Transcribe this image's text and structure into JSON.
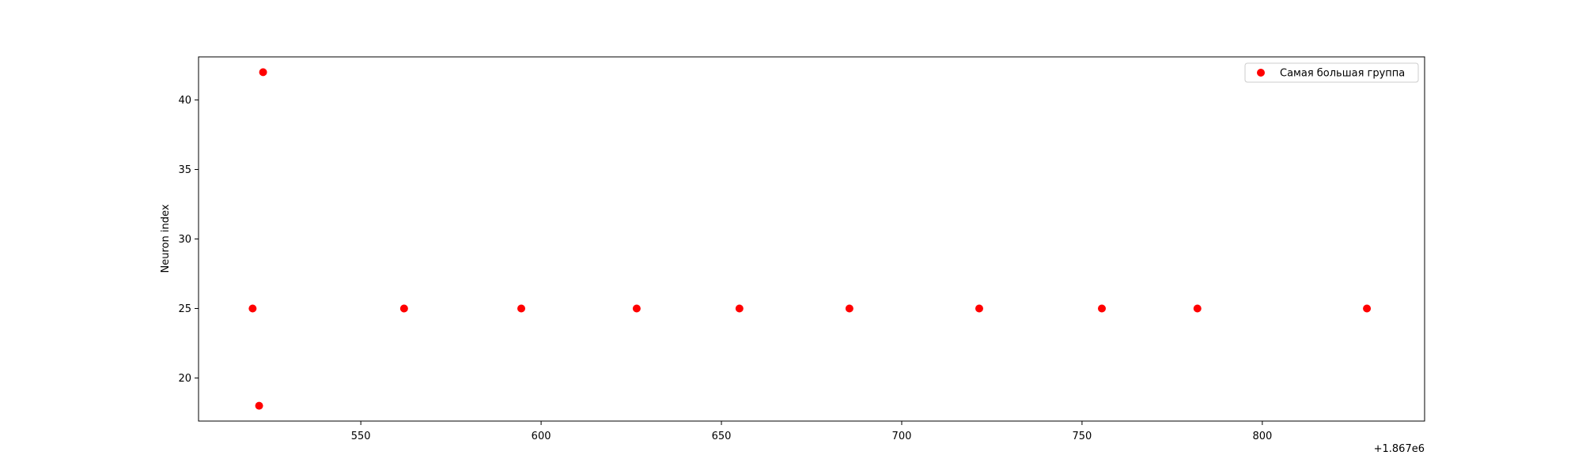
{
  "chart_data": {
    "type": "scatter",
    "xlabel": "",
    "ylabel": "Neuron index",
    "x_offset_label": "+1.867e6",
    "xlim": [
      505,
      845
    ],
    "ylim": [
      16.9,
      43.1
    ],
    "x_ticks": [
      550,
      600,
      650,
      700,
      750,
      800
    ],
    "y_ticks": [
      20,
      25,
      30,
      35,
      40
    ],
    "grid": false,
    "legend_position": "top-right",
    "series": [
      {
        "name": "Самая большая группа",
        "color": "#ff0000",
        "marker": "circle",
        "x": [
          520,
          521.8,
          522.9,
          562,
          594.5,
          626.5,
          655,
          685.5,
          721.5,
          755.5,
          782,
          829
        ],
        "y": [
          25,
          18,
          42,
          25,
          25,
          25,
          25,
          25,
          25,
          25,
          25,
          25
        ]
      }
    ]
  }
}
